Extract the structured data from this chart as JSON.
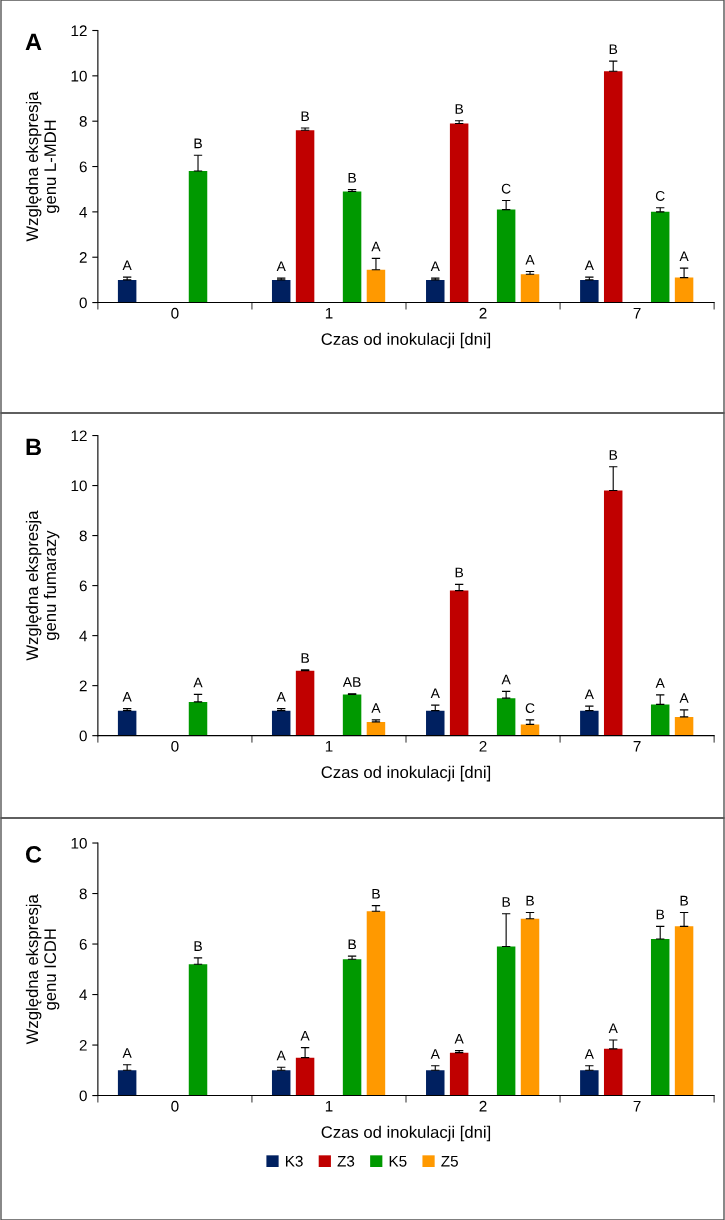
{
  "chart_data": [
    {
      "type": "bar",
      "title": "A",
      "ylabel": "Względna ekspresja\ngenu L-MDH",
      "xlabel": "Czas od inokulacji [dni]",
      "categories": [
        "0",
        "1",
        "2",
        "7"
      ],
      "ylim": [
        0,
        12
      ],
      "yticks": [
        0,
        2,
        4,
        6,
        8,
        10,
        12
      ],
      "grid": false,
      "legend": false,
      "series": [
        {
          "color": "#002060",
          "values": [
            1,
            1,
            1,
            1
          ],
          "errors": [
            0.12,
            0.08,
            0.08,
            0.12
          ],
          "value_labels": [
            "A",
            "A",
            "A",
            "A"
          ]
        },
        {
          "color": "#c00000",
          "values": [
            null,
            7.6,
            7.9,
            10.2
          ],
          "errors": [
            null,
            0.1,
            0.12,
            0.45
          ],
          "value_labels": [
            null,
            "B",
            "B",
            "B"
          ]
        },
        {
          "color": "#009900",
          "values": [
            5.8,
            4.9,
            4.1,
            4.0
          ],
          "errors": [
            0.7,
            0.08,
            0.4,
            0.18
          ],
          "value_labels": [
            "B",
            "B",
            "C",
            "C"
          ]
        },
        {
          "color": "#ff9900",
          "values": [
            null,
            1.45,
            1.25,
            1.1
          ],
          "errors": [
            null,
            0.5,
            0.12,
            0.42
          ],
          "value_labels": [
            null,
            "A",
            "A",
            "A"
          ]
        }
      ]
    },
    {
      "type": "bar",
      "title": "B",
      "ylabel": "Względna ekspresja\ngenu fumarazy",
      "xlabel": "Czas od inokulacji [dni]",
      "categories": [
        "0",
        "1",
        "2",
        "7"
      ],
      "ylim": [
        0,
        12
      ],
      "yticks": [
        0,
        2,
        4,
        6,
        8,
        10,
        12
      ],
      "grid": false,
      "legend": false,
      "series": [
        {
          "color": "#002060",
          "values": [
            1,
            1,
            1,
            1
          ],
          "errors": [
            0.08,
            0.08,
            0.22,
            0.18
          ],
          "value_labels": [
            "A",
            "A",
            "A",
            "A"
          ]
        },
        {
          "color": "#c00000",
          "values": [
            null,
            2.6,
            5.8,
            9.8
          ],
          "errors": [
            null,
            0.03,
            0.25,
            0.95
          ],
          "value_labels": [
            null,
            "B",
            "B",
            "B"
          ]
        },
        {
          "color": "#009900",
          "values": [
            1.35,
            1.65,
            1.5,
            1.25
          ],
          "errors": [
            0.3,
            0.02,
            0.27,
            0.38
          ],
          "value_labels": [
            "A",
            "AB",
            "A",
            "A"
          ]
        },
        {
          "color": "#ff9900",
          "values": [
            null,
            0.55,
            0.45,
            0.75
          ],
          "errors": [
            null,
            0.08,
            0.18,
            0.28
          ],
          "value_labels": [
            null,
            "A",
            "C",
            "A"
          ]
        }
      ]
    },
    {
      "type": "bar",
      "title": "C",
      "ylabel": "Względna ekspresja\ngenu ICDH",
      "xlabel": "Czas od inokulacji [dni]",
      "categories": [
        "0",
        "1",
        "2",
        "7"
      ],
      "ylim": [
        0,
        10
      ],
      "yticks": [
        0,
        2,
        4,
        6,
        8,
        10
      ],
      "grid": false,
      "legend": "bottom",
      "series": [
        {
          "name": "K3",
          "color": "#002060",
          "values": [
            1,
            1,
            1,
            1
          ],
          "errors": [
            0.22,
            0.12,
            0.18,
            0.18
          ],
          "value_labels": [
            "A",
            "A",
            "A",
            "A"
          ]
        },
        {
          "name": "Z3",
          "color": "#c00000",
          "values": [
            null,
            1.5,
            1.7,
            1.85
          ],
          "errors": [
            null,
            0.4,
            0.08,
            0.35
          ],
          "value_labels": [
            null,
            "A",
            "A",
            "A"
          ]
        },
        {
          "name": "K5",
          "color": "#009900",
          "values": [
            5.2,
            5.4,
            5.9,
            6.2
          ],
          "errors": [
            0.25,
            0.12,
            1.3,
            0.5
          ],
          "value_labels": [
            "B",
            "B",
            "B",
            "B"
          ]
        },
        {
          "name": "Z5",
          "color": "#ff9900",
          "values": [
            null,
            7.3,
            7.0,
            6.7
          ],
          "errors": [
            null,
            0.22,
            0.25,
            0.55
          ],
          "value_labels": [
            null,
            "B",
            "B",
            "B"
          ]
        }
      ]
    }
  ]
}
